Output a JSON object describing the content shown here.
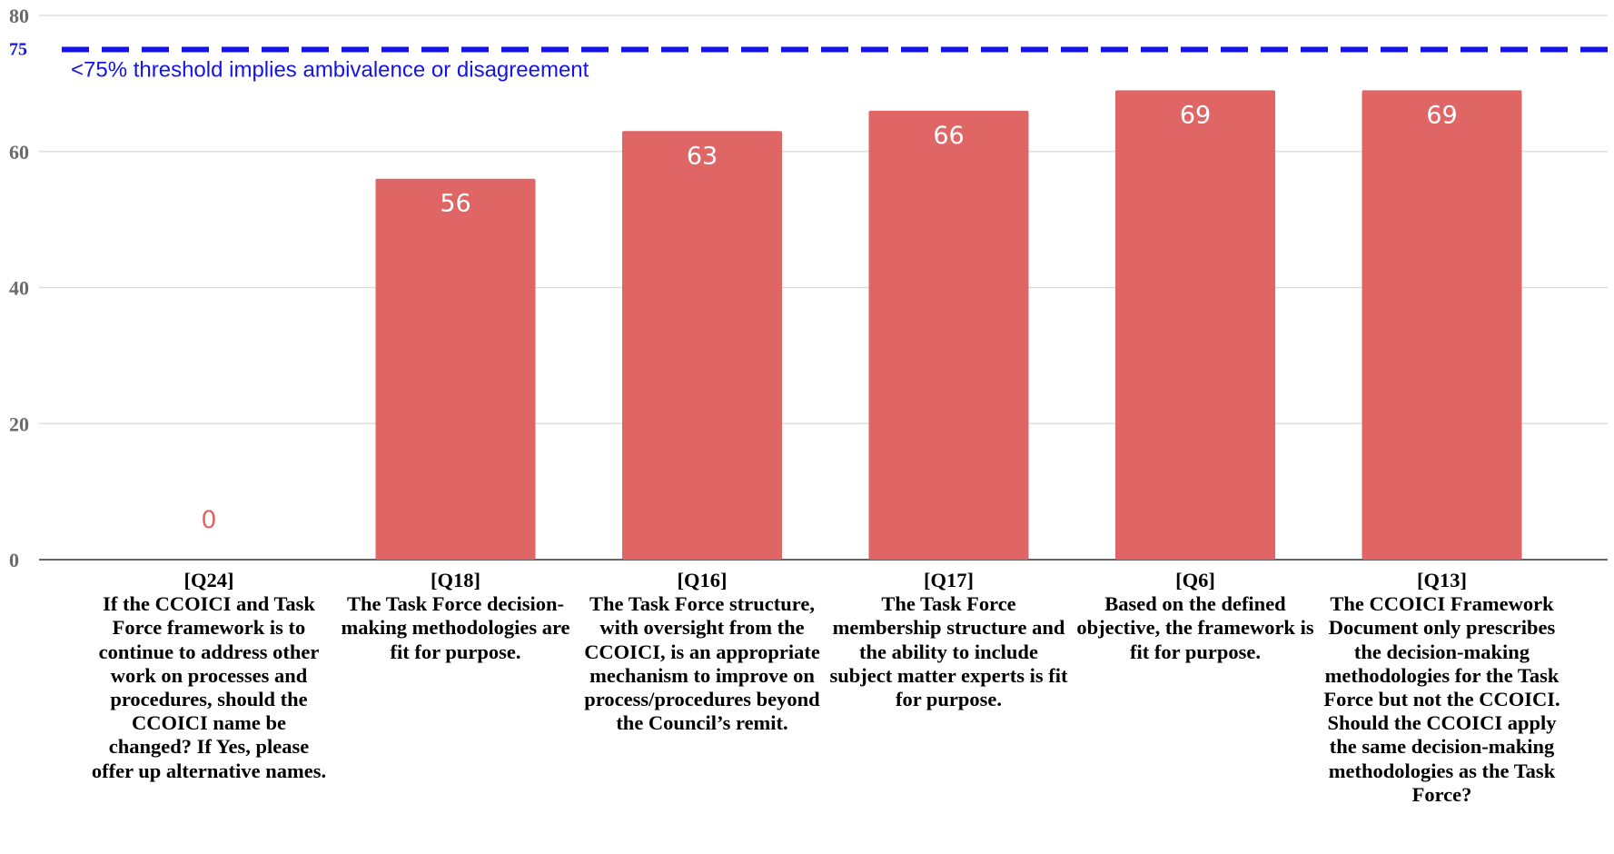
{
  "chart_data": {
    "type": "bar",
    "title": "",
    "xlabel": "",
    "ylabel": "",
    "ylim": [
      0,
      80
    ],
    "yticks": [
      0,
      20,
      40,
      60,
      80
    ],
    "grid": true,
    "legend": "none",
    "bar_color": "#e06666",
    "threshold": {
      "value": 75,
      "tick_label": "75",
      "label": "<75% threshold implies ambivalence or disagreement",
      "color": "#1414e6",
      "style": "dashed"
    },
    "categories": [
      {
        "code": "[Q24]",
        "text": "If the CCOICI and Task Force framework is to continue to address other work on processes and procedures, should the CCOICI name be changed? If Yes, please offer up alternative names."
      },
      {
        "code": "[Q18]",
        "text": "The Task Force decision-making methodologies are fit for purpose."
      },
      {
        "code": "[Q16]",
        "text": "The Task Force structure, with oversight from the CCOICI, is an appropriate mechanism to improve on process/procedures beyond the Council’s remit."
      },
      {
        "code": "[Q17]",
        "text": "The Task Force membership structure and the ability to include subject matter experts is fit for purpose."
      },
      {
        "code": "[Q6]",
        "text": "Based on the defined objective, the framework is fit for purpose."
      },
      {
        "code": "[Q13]",
        "text": "The CCOICI Framework Document only prescribes the decision-making methodologies for the Task Force but not the CCOICI. Should the CCOICI apply the same decision-making methodologies as the Task Force?"
      }
    ],
    "values": [
      0,
      56,
      63,
      66,
      69,
      69
    ],
    "data_labels": [
      "0",
      "56",
      "63",
      "66",
      "69",
      "69"
    ]
  }
}
